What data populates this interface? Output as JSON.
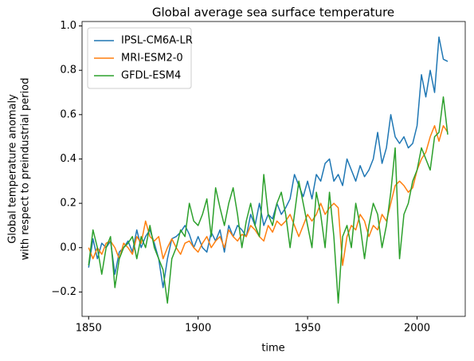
{
  "chart_data": {
    "type": "line",
    "title": "Global average sea surface temperature",
    "xlabel": "time",
    "ylabel": [
      "Global temperature anomaly",
      "with respect to preindustrial period"
    ],
    "legend": "upper left",
    "xlim": [
      1847,
      2022
    ],
    "ylim": [
      -0.31,
      1.02
    ],
    "xticks": [
      1850,
      1900,
      1950,
      2000
    ],
    "yticks": [
      {
        "value": -0.2,
        "label": "−0.2"
      },
      {
        "value": 0,
        "label": "0.0"
      },
      0.2,
      0.4,
      0.6,
      0.8,
      {
        "value": 1,
        "label": "1.0"
      }
    ],
    "x": [
      1850,
      1852,
      1854,
      1856,
      1858,
      1860,
      1862,
      1864,
      1866,
      1868,
      1870,
      1872,
      1874,
      1876,
      1878,
      1880,
      1882,
      1884,
      1886,
      1888,
      1890,
      1892,
      1894,
      1896,
      1898,
      1900,
      1902,
      1904,
      1906,
      1908,
      1910,
      1912,
      1914,
      1916,
      1918,
      1920,
      1922,
      1924,
      1926,
      1928,
      1930,
      1932,
      1934,
      1936,
      1938,
      1940,
      1942,
      1944,
      1946,
      1948,
      1950,
      1952,
      1954,
      1956,
      1958,
      1960,
      1962,
      1964,
      1966,
      1968,
      1970,
      1972,
      1974,
      1976,
      1978,
      1980,
      1982,
      1984,
      1986,
      1988,
      1990,
      1992,
      1994,
      1996,
      1998,
      2000,
      2002,
      2004,
      2006,
      2008,
      2010,
      2012,
      2014
    ],
    "series": [
      {
        "name": "IPSL-CM6A-LR",
        "color": "#1f77b4",
        "values": [
          -0.09,
          0.04,
          -0.05,
          0.02,
          0.0,
          0.03,
          -0.12,
          -0.02,
          0.0,
          0.03,
          -0.02,
          0.08,
          0.0,
          0.05,
          0.08,
          0.02,
          -0.05,
          -0.18,
          -0.05,
          0.04,
          0.05,
          0.07,
          0.1,
          0.06,
          0.0,
          0.05,
          0.0,
          -0.02,
          0.07,
          0.03,
          0.08,
          -0.02,
          0.1,
          0.05,
          0.1,
          0.08,
          0.05,
          0.15,
          0.1,
          0.2,
          0.1,
          0.15,
          0.13,
          0.2,
          0.15,
          0.18,
          0.22,
          0.33,
          0.28,
          0.23,
          0.3,
          0.22,
          0.33,
          0.3,
          0.38,
          0.4,
          0.3,
          0.33,
          0.28,
          0.4,
          0.35,
          0.3,
          0.37,
          0.32,
          0.35,
          0.4,
          0.52,
          0.38,
          0.45,
          0.6,
          0.5,
          0.47,
          0.5,
          0.45,
          0.47,
          0.55,
          0.78,
          0.68,
          0.8,
          0.7,
          0.95,
          0.85,
          0.84
        ]
      },
      {
        "name": "MRI-ESM2-0",
        "color": "#ff7f0e",
        "values": [
          0.0,
          -0.05,
          0.0,
          -0.03,
          0.02,
          0.03,
          0.0,
          -0.05,
          0.02,
          0.0,
          -0.03,
          0.05,
          0.02,
          0.12,
          0.05,
          0.03,
          0.05,
          -0.05,
          0.0,
          0.04,
          0.0,
          -0.03,
          0.02,
          0.03,
          0.0,
          -0.02,
          0.02,
          0.05,
          0.0,
          0.03,
          0.05,
          0.0,
          0.08,
          0.05,
          0.03,
          0.06,
          0.05,
          0.1,
          0.08,
          0.05,
          0.03,
          0.1,
          0.07,
          0.12,
          0.1,
          0.12,
          0.15,
          0.1,
          0.05,
          0.1,
          0.15,
          0.12,
          0.15,
          0.2,
          0.15,
          0.18,
          0.2,
          0.18,
          -0.08,
          0.05,
          0.1,
          0.08,
          0.15,
          0.12,
          0.05,
          0.1,
          0.08,
          0.15,
          0.12,
          0.2,
          0.28,
          0.3,
          0.28,
          0.25,
          0.27,
          0.35,
          0.4,
          0.43,
          0.5,
          0.55,
          0.48,
          0.55,
          0.52
        ]
      },
      {
        "name": "GFDL-ESM4",
        "color": "#2ca02c",
        "values": [
          -0.08,
          0.08,
          0.0,
          -0.12,
          0.0,
          0.05,
          -0.18,
          -0.05,
          0.0,
          0.02,
          0.05,
          -0.05,
          0.05,
          0.0,
          0.1,
          0.0,
          -0.05,
          -0.1,
          -0.25,
          -0.05,
          0.0,
          0.08,
          0.05,
          0.2,
          0.12,
          0.1,
          0.15,
          0.22,
          0.05,
          0.27,
          0.18,
          0.1,
          0.2,
          0.27,
          0.15,
          0.0,
          0.12,
          0.2,
          0.1,
          0.05,
          0.33,
          0.15,
          0.1,
          0.2,
          0.25,
          0.15,
          0.0,
          0.15,
          0.3,
          0.2,
          0.1,
          0.0,
          0.25,
          0.15,
          0.0,
          0.25,
          0.05,
          -0.25,
          0.05,
          0.1,
          0.0,
          0.2,
          0.1,
          -0.05,
          0.1,
          0.2,
          0.15,
          0.0,
          0.1,
          0.25,
          0.45,
          -0.05,
          0.15,
          0.2,
          0.3,
          0.35,
          0.45,
          0.4,
          0.35,
          0.5,
          0.52,
          0.68,
          0.51
        ]
      }
    ]
  }
}
